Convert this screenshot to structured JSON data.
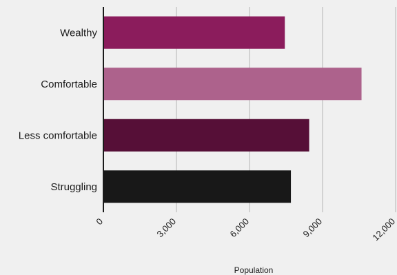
{
  "chart_data": {
    "type": "bar",
    "orientation": "horizontal",
    "categories": [
      "Wealthy",
      "Comfortable",
      "Less comfortable",
      "Struggling"
    ],
    "values": [
      7450,
      10600,
      8450,
      7700
    ],
    "colors": [
      "#8b1c5c",
      "#ad628c",
      "#560f37",
      "#181818"
    ],
    "xlabel": "Population",
    "ylabel": "",
    "title": "",
    "xlim": [
      0,
      12000
    ],
    "xticks": [
      0,
      3000,
      6000,
      9000,
      12000
    ],
    "xtick_labels": [
      "0",
      "3,000",
      "6,000",
      "9,000",
      "12,000"
    ],
    "grid": "vertical",
    "background": "#f0f0f0"
  }
}
